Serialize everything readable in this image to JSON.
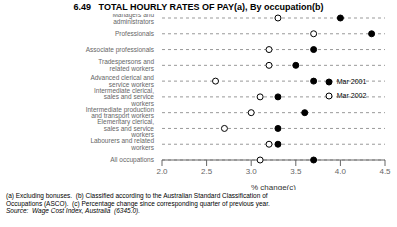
{
  "chart_data": {
    "type": "dot",
    "title": "6.49   TOTAL HOURLY RATES OF PAY(a), By occupation(b)",
    "xlabel": "% change(c)",
    "orientation": "horizontal",
    "xlim": [
      2.0,
      4.5
    ],
    "xticks": [
      {
        "value": 2.0,
        "label": "2.0"
      },
      2.5,
      {
        "value": 3.0,
        "label": "3.0"
      },
      3.5,
      {
        "value": 4.0,
        "label": "4.0"
      },
      4.5
    ],
    "categories": [
      "Managers and administrators",
      "Professionals",
      "Associate professionals",
      "Tradespersons and related workers",
      "Advanced clerical and service workers",
      "Intermediate clerical, sales and service workers",
      "Intermediate production and transport workers",
      "Elementary clerical, sales and service workers",
      "Labourers and related workers",
      "All occupations"
    ],
    "series": [
      {
        "name": "Mar 2001",
        "color": "#000000",
        "marker": "filled_circle",
        "values": [
          4.0,
          4.35,
          3.7,
          3.5,
          3.7,
          3.3,
          3.6,
          3.3,
          3.3,
          3.7
        ]
      },
      {
        "name": "Mar 2002",
        "color": "#000000",
        "marker": "open_circle",
        "values": [
          3.3,
          3.7,
          3.2,
          3.2,
          2.6,
          3.1,
          3.0,
          2.7,
          3.2,
          3.1
        ]
      }
    ],
    "grid": true,
    "legend": "right",
    "footnotes": [
      "(a) Excluding bonuses.  (b) Classified according to the Australian Standard Classification of",
      "Occupations (ASCO).  (c) Percentage change since corresponding quarter of previous year."
    ],
    "source": "Source:  Wage Cost Index, Australia  (6345.0)."
  }
}
